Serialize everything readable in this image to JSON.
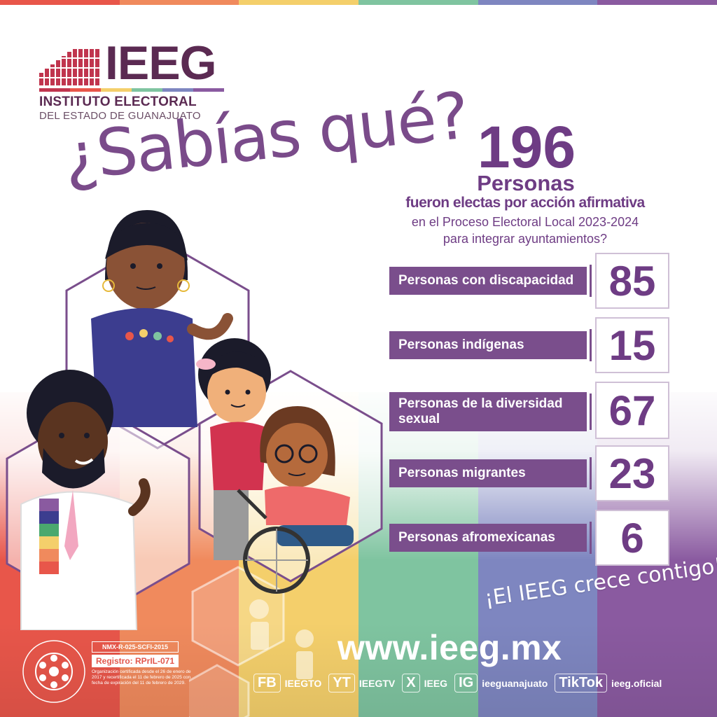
{
  "brand": {
    "acronym": "IEEG",
    "name_line1": "INSTITUTO ELECTORAL",
    "name_line2": "DEL ESTADO DE GUANAJUATO",
    "colors": [
      "#e8564a",
      "#f08a5d",
      "#f4cf6b",
      "#7fc4a0",
      "#7e86c0",
      "#8a5aa0"
    ]
  },
  "headline": {
    "question": "¿Sabías qué?",
    "count": "196",
    "unit": "Personas",
    "line1": "fueron electas por acción afirmativa",
    "line2": "en el Proceso Electoral Local 2023-2024",
    "line3": "para integrar ayuntamientos?"
  },
  "stats": [
    {
      "label": "Personas con discapacidad",
      "value": "85"
    },
    {
      "label": "Personas indígenas",
      "value": "15"
    },
    {
      "label": "Personas de la diversidad sexual",
      "value": "67"
    },
    {
      "label": "Personas migrantes",
      "value": "23"
    },
    {
      "label": "Personas afromexicanas",
      "value": "6"
    }
  ],
  "footer": {
    "slogan": "¡El IEEG crece contigo!",
    "url": "www.ieeg.mx",
    "socials": [
      {
        "icon": "FB",
        "handle": "IEEGTO"
      },
      {
        "icon": "YT",
        "handle": "IEEGTV"
      },
      {
        "icon": "X",
        "handle": "IEEG"
      },
      {
        "icon": "IG",
        "handle": "ieeguanajuato"
      },
      {
        "icon": "TikTok",
        "handle": "ieeg.oficial"
      }
    ],
    "certification": {
      "code": "NMX-R-025-SCFI-2015",
      "registry": "Registro: RPrIL-071",
      "text": "Organización certificada desde el 26 de enero de 2017 y recertificada el 11 de febrero de 2025 con fecha de expiración del 11 de febrero de 2029.",
      "seal_text": "Norma Mexicana en Igualdad Laboral y No Discriminación"
    }
  }
}
